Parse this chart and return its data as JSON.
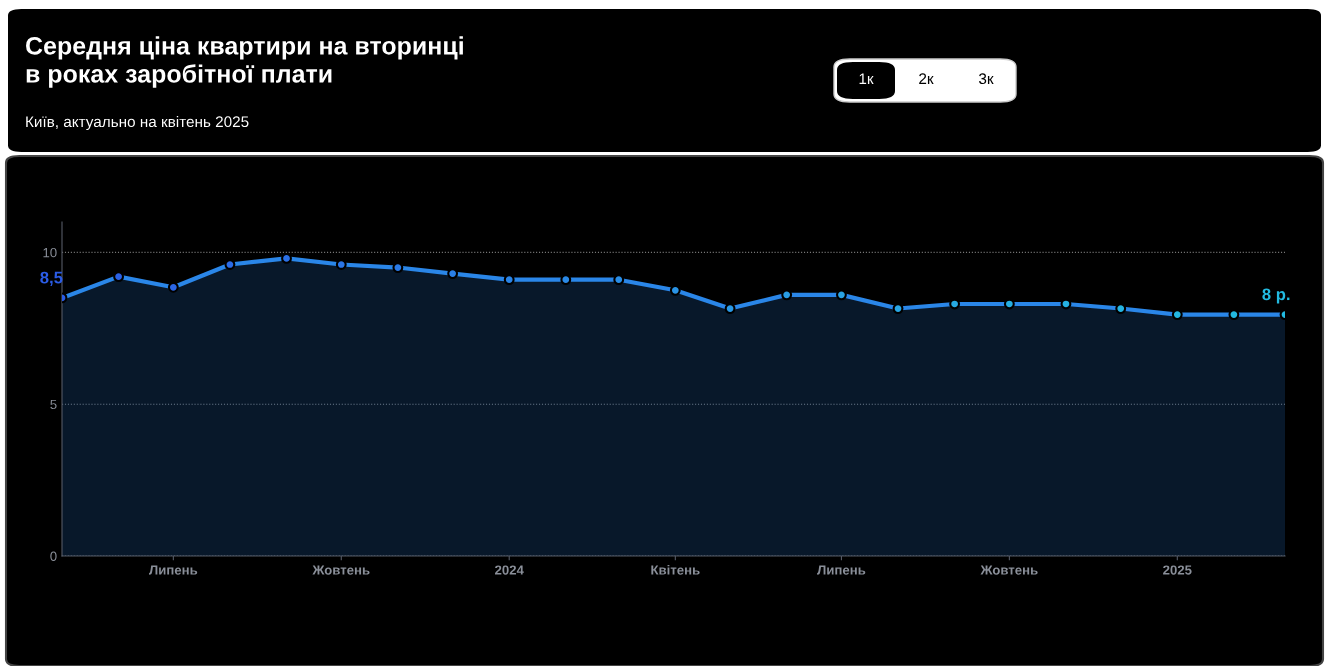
{
  "chart_data": {
    "type": "area",
    "title": "Середня ціна квартири на вторинці\nв роках заробітної плати",
    "subtitle": "Київ, актуально на квітень 2025",
    "annotations": [
      "1к",
      "2к",
      "3к"
    ],
    "x": [
      "2023-05",
      "2023-06",
      "2023-07",
      "2023-08",
      "2023-09",
      "2023-10",
      "2023-11",
      "2023-12",
      "2024-01",
      "2024-02",
      "2024-03",
      "2024-04",
      "2024-05",
      "2024-06",
      "2024-07",
      "2024-08",
      "2024-09",
      "2024-10",
      "2024-11",
      "2024-12",
      "2025-01",
      "2025-02",
      "2025-03"
    ],
    "series": [
      {
        "color": "#2a86e8",
        "colors": [
          "#2b5ce6",
          "#2b61e6",
          "#2b66e6",
          "#2b6be6",
          "#2b70e6",
          "#2a75e6",
          "#2a7ae6",
          "#2a7fe6",
          "#2a84e6",
          "#2a89e6",
          "#2a8ee6",
          "#2993e5",
          "#2998e5",
          "#299de5",
          "#28a2e4",
          "#28a6e4",
          "#27aae3",
          "#26aee2",
          "#25b1e2",
          "#24b4e1",
          "#23b6e1",
          "#22b8e0",
          "#22bae0"
        ],
        "values": [
          8.5,
          9.2,
          8.85,
          9.6,
          9.8,
          9.6,
          9.5,
          9.3,
          9.1,
          9.1,
          9.1,
          8.75,
          8.15,
          8.6,
          8.6,
          8.15,
          8.3,
          8.3,
          8.3,
          8.15,
          7.95,
          7.95,
          7.95
        ],
        "value_labels": [
          "8,5",
          null,
          null,
          null,
          null,
          null,
          null,
          null,
          null,
          null,
          null,
          null,
          null,
          null,
          null,
          null,
          null,
          null,
          null,
          null,
          null,
          null,
          "8 р."
        ]
      }
    ],
    "xlim": [
      "2023-05",
      "2025-03"
    ],
    "xticks": [
      {
        "value": "2023-07",
        "label": "Липень"
      },
      {
        "value": "2023-10",
        "label": "Жовтень"
      },
      {
        "value": "2024-01",
        "label": "2024"
      },
      {
        "value": "2024-04",
        "label": "Квітень"
      },
      {
        "value": "2024-07",
        "label": "Липень"
      },
      {
        "value": "2024-10",
        "label": "Жовтень"
      },
      {
        "value": "2025-01",
        "label": "2025"
      }
    ],
    "ylim": [
      0,
      11
    ],
    "yticks": [
      0,
      5,
      10
    ],
    "grid": "y",
    "legend": false,
    "marker": "circle",
    "line_style": "solid"
  }
}
